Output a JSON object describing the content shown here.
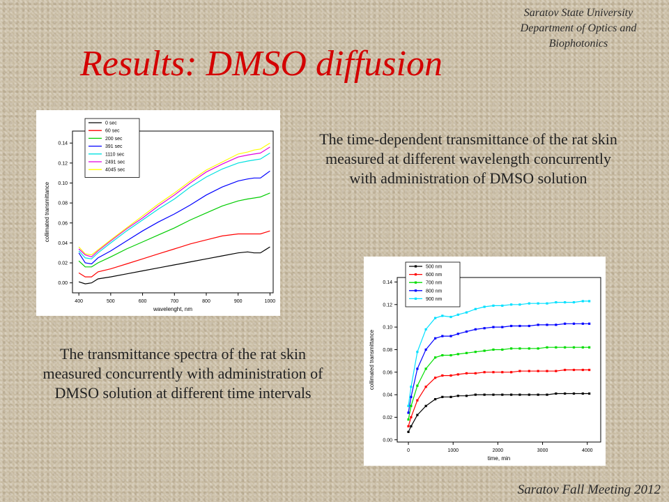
{
  "header": {
    "affiliation_line1": "Saratov State University",
    "affiliation_line2": "Department of Optics and",
    "affiliation_line3": "Biophotonics",
    "title": "Results: DMSO diffusion"
  },
  "captions": {
    "right": "The time-dependent transmittance of the rat skin measured at different wavelength concurrently with administration of DMSO solution",
    "left": "The transmittance spectra of the rat skin measured concurrently with administration of DMSO solution at different time intervals"
  },
  "footer": {
    "text": "Saratov Fall Meeting 2012"
  },
  "chart_data": [
    {
      "type": "line",
      "xlabel": "wavelenght, nm",
      "ylabel": "collimated transmittance",
      "xlim": [
        380,
        1010
      ],
      "ylim": [
        -0.01,
        0.152
      ],
      "xticks": [
        400,
        500,
        600,
        700,
        800,
        900,
        1000
      ],
      "yticks": [
        0.0,
        0.02,
        0.04,
        0.06,
        0.08,
        0.1,
        0.12,
        0.14
      ],
      "ytick_labels": [
        "0.00",
        "0.02",
        "0.04",
        "0.06",
        "0.08",
        "0.10",
        "0.12",
        "0.14"
      ],
      "legend_position": "top-left",
      "x": [
        400,
        420,
        440,
        460,
        500,
        550,
        600,
        650,
        700,
        750,
        800,
        850,
        900,
        930,
        950,
        970,
        1000
      ],
      "series": [
        {
          "name": "0 sec",
          "color": "#000000",
          "values": [
            0.001,
            -0.001,
            0.0,
            0.004,
            0.006,
            0.009,
            0.012,
            0.015,
            0.018,
            0.021,
            0.024,
            0.027,
            0.03,
            0.031,
            0.03,
            0.03,
            0.036
          ]
        },
        {
          "name": "60 sec",
          "color": "#ff0000",
          "values": [
            0.01,
            0.006,
            0.006,
            0.011,
            0.014,
            0.019,
            0.024,
            0.029,
            0.034,
            0.039,
            0.043,
            0.047,
            0.049,
            0.049,
            0.049,
            0.049,
            0.052
          ]
        },
        {
          "name": "200 sec",
          "color": "#00cc00",
          "values": [
            0.022,
            0.016,
            0.016,
            0.02,
            0.026,
            0.034,
            0.041,
            0.048,
            0.055,
            0.063,
            0.07,
            0.077,
            0.082,
            0.084,
            0.085,
            0.086,
            0.09
          ]
        },
        {
          "name": "391 sec",
          "color": "#0000ff",
          "values": [
            0.03,
            0.02,
            0.019,
            0.025,
            0.032,
            0.042,
            0.052,
            0.061,
            0.069,
            0.078,
            0.088,
            0.096,
            0.102,
            0.104,
            0.105,
            0.105,
            0.112
          ]
        },
        {
          "name": "1110 sec",
          "color": "#00e0e0",
          "values": [
            0.032,
            0.025,
            0.024,
            0.03,
            0.04,
            0.052,
            0.063,
            0.074,
            0.084,
            0.096,
            0.106,
            0.114,
            0.12,
            0.122,
            0.123,
            0.124,
            0.13
          ]
        },
        {
          "name": "2491 sec",
          "color": "#e000e0",
          "values": [
            0.034,
            0.028,
            0.026,
            0.032,
            0.042,
            0.054,
            0.065,
            0.077,
            0.088,
            0.1,
            0.111,
            0.119,
            0.126,
            0.128,
            0.129,
            0.13,
            0.136
          ]
        },
        {
          "name": "4045 sec",
          "color": "#ffff00",
          "values": [
            0.036,
            0.029,
            0.028,
            0.033,
            0.043,
            0.055,
            0.067,
            0.079,
            0.09,
            0.102,
            0.113,
            0.121,
            0.129,
            0.131,
            0.133,
            0.134,
            0.14
          ]
        }
      ]
    },
    {
      "type": "line",
      "xlabel": "time, min",
      "ylabel": "collimated transmittance",
      "xlim": [
        -250,
        4300
      ],
      "ylim": [
        -0.002,
        0.144
      ],
      "xticks": [
        0,
        1000,
        2000,
        3000,
        4000
      ],
      "yticks": [
        0.0,
        0.02,
        0.04,
        0.06,
        0.08,
        0.1,
        0.12,
        0.14
      ],
      "ytick_labels": [
        "0.00",
        "0.02",
        "0.04",
        "0.06",
        "0.08",
        "0.10",
        "0.12",
        "0.14"
      ],
      "legend_position": "top-left",
      "x": [
        0,
        60,
        200,
        391,
        600,
        760,
        950,
        1110,
        1300,
        1500,
        1700,
        1900,
        2100,
        2300,
        2491,
        2700,
        2900,
        3100,
        3300,
        3500,
        3700,
        3900,
        4045
      ],
      "series": [
        {
          "name": "500 nm",
          "color": "#000000",
          "values": [
            0.007,
            0.012,
            0.022,
            0.03,
            0.036,
            0.038,
            0.038,
            0.039,
            0.039,
            0.04,
            0.04,
            0.04,
            0.04,
            0.04,
            0.04,
            0.04,
            0.04,
            0.04,
            0.041,
            0.041,
            0.041,
            0.041,
            0.041
          ]
        },
        {
          "name": "600 nm",
          "color": "#ff0000",
          "values": [
            0.012,
            0.02,
            0.035,
            0.047,
            0.055,
            0.057,
            0.057,
            0.058,
            0.059,
            0.059,
            0.06,
            0.06,
            0.06,
            0.06,
            0.061,
            0.061,
            0.061,
            0.061,
            0.061,
            0.062,
            0.062,
            0.062,
            0.062
          ]
        },
        {
          "name": "700 nm",
          "color": "#00dd00",
          "values": [
            0.018,
            0.03,
            0.048,
            0.063,
            0.073,
            0.075,
            0.075,
            0.076,
            0.077,
            0.078,
            0.079,
            0.08,
            0.08,
            0.081,
            0.081,
            0.081,
            0.081,
            0.082,
            0.082,
            0.082,
            0.082,
            0.082,
            0.082
          ]
        },
        {
          "name": "800 nm",
          "color": "#0000ff",
          "values": [
            0.024,
            0.038,
            0.063,
            0.08,
            0.09,
            0.092,
            0.092,
            0.094,
            0.096,
            0.098,
            0.099,
            0.1,
            0.1,
            0.101,
            0.101,
            0.101,
            0.102,
            0.102,
            0.102,
            0.103,
            0.103,
            0.103,
            0.103
          ]
        },
        {
          "name": "900 nm",
          "color": "#00e0ff",
          "values": [
            0.03,
            0.047,
            0.078,
            0.098,
            0.108,
            0.11,
            0.109,
            0.111,
            0.113,
            0.116,
            0.118,
            0.119,
            0.119,
            0.12,
            0.12,
            0.121,
            0.121,
            0.121,
            0.122,
            0.122,
            0.122,
            0.123,
            0.123
          ]
        }
      ]
    }
  ]
}
